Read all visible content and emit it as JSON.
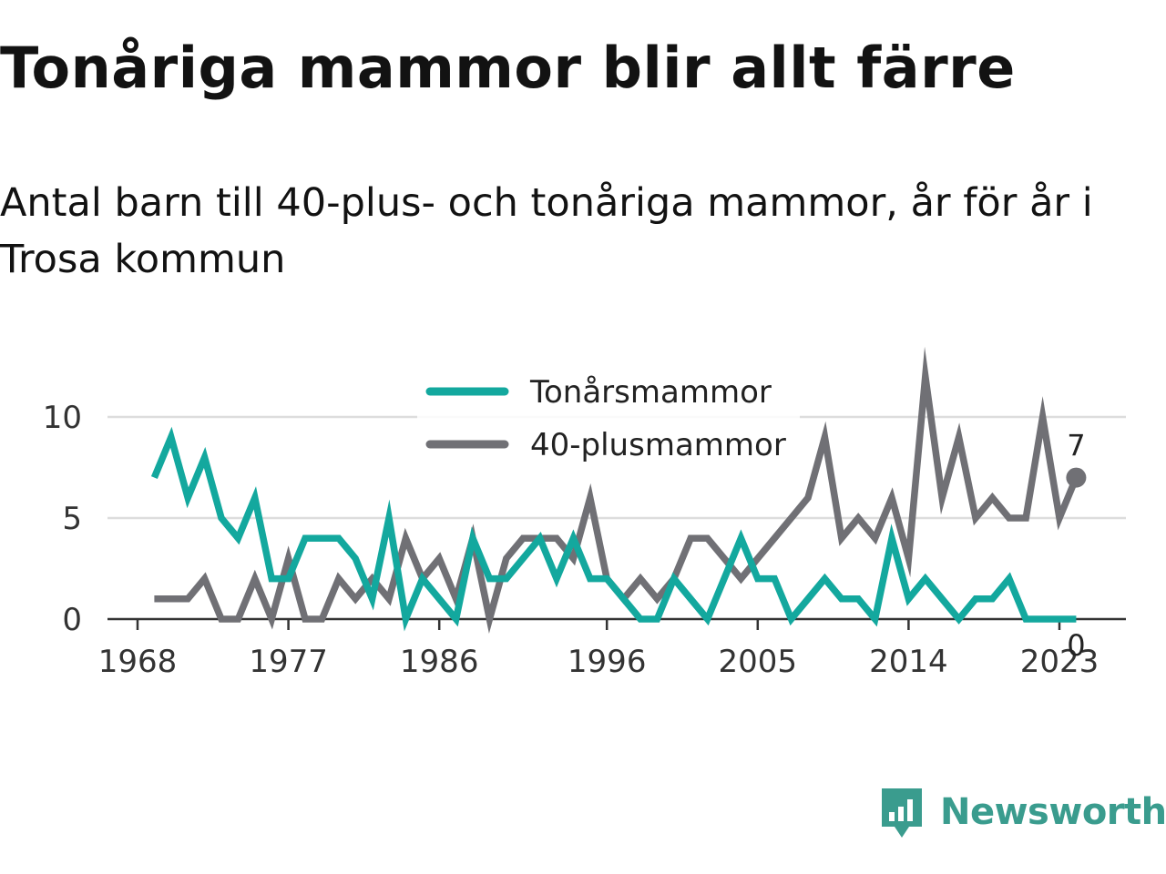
{
  "title": "Tonåriga mammor blir allt färre",
  "subtitle": "Antal barn till 40-plus- och tonåriga mammor, år för år i Trosa kommun",
  "brand": {
    "name": "Newsworthy",
    "icon": "bar-chart-speech-bubble-icon",
    "color": "#3a9c8e"
  },
  "chart_data": {
    "type": "line",
    "x": [
      1969,
      1970,
      1971,
      1972,
      1973,
      1974,
      1975,
      1976,
      1977,
      1978,
      1979,
      1980,
      1981,
      1982,
      1983,
      1984,
      1985,
      1986,
      1987,
      1988,
      1989,
      1990,
      1991,
      1992,
      1993,
      1994,
      1995,
      1996,
      1997,
      1998,
      1999,
      2000,
      2001,
      2002,
      2003,
      2004,
      2005,
      2006,
      2007,
      2008,
      2009,
      2010,
      2011,
      2012,
      2013,
      2014,
      2015,
      2016,
      2017,
      2018,
      2019,
      2020,
      2021,
      2022,
      2023,
      2024
    ],
    "series": [
      {
        "name": "Tonårsmammor",
        "color": "#13a89e",
        "values": [
          7,
          9,
          6,
          8,
          5,
          4,
          6,
          2,
          2,
          4,
          4,
          4,
          3,
          1,
          5,
          0,
          2,
          1,
          0,
          4,
          2,
          2,
          3,
          4,
          2,
          4,
          2,
          2,
          1,
          0,
          0,
          2,
          1,
          0,
          2,
          4,
          2,
          2,
          0,
          1,
          2,
          1,
          1,
          0,
          4,
          1,
          2,
          1,
          0,
          1,
          1,
          2,
          0,
          0,
          0,
          0
        ]
      },
      {
        "name": "40-plusmammor",
        "color": "#707075",
        "values": [
          1,
          1,
          1,
          2,
          0,
          0,
          2,
          0,
          3,
          0,
          0,
          2,
          1,
          2,
          1,
          4,
          2,
          3,
          1,
          4,
          0,
          3,
          4,
          4,
          4,
          3,
          6,
          2,
          1,
          2,
          1,
          2,
          4,
          4,
          3,
          2,
          3,
          4,
          5,
          6,
          9,
          4,
          5,
          4,
          6,
          3,
          12,
          6,
          9,
          5,
          6,
          5,
          5,
          10,
          5,
          7
        ]
      }
    ],
    "x_ticks": [
      "1968",
      "1977",
      "1986",
      "1996",
      "2005",
      "2014",
      "2023"
    ],
    "y_ticks": [
      "0",
      "5",
      "10"
    ],
    "end_labels": {
      "40-plusmammor": "7",
      "Tonårsmammor": "0"
    },
    "ylim": [
      0,
      12
    ],
    "grid": true,
    "legend_position": "top-center"
  }
}
